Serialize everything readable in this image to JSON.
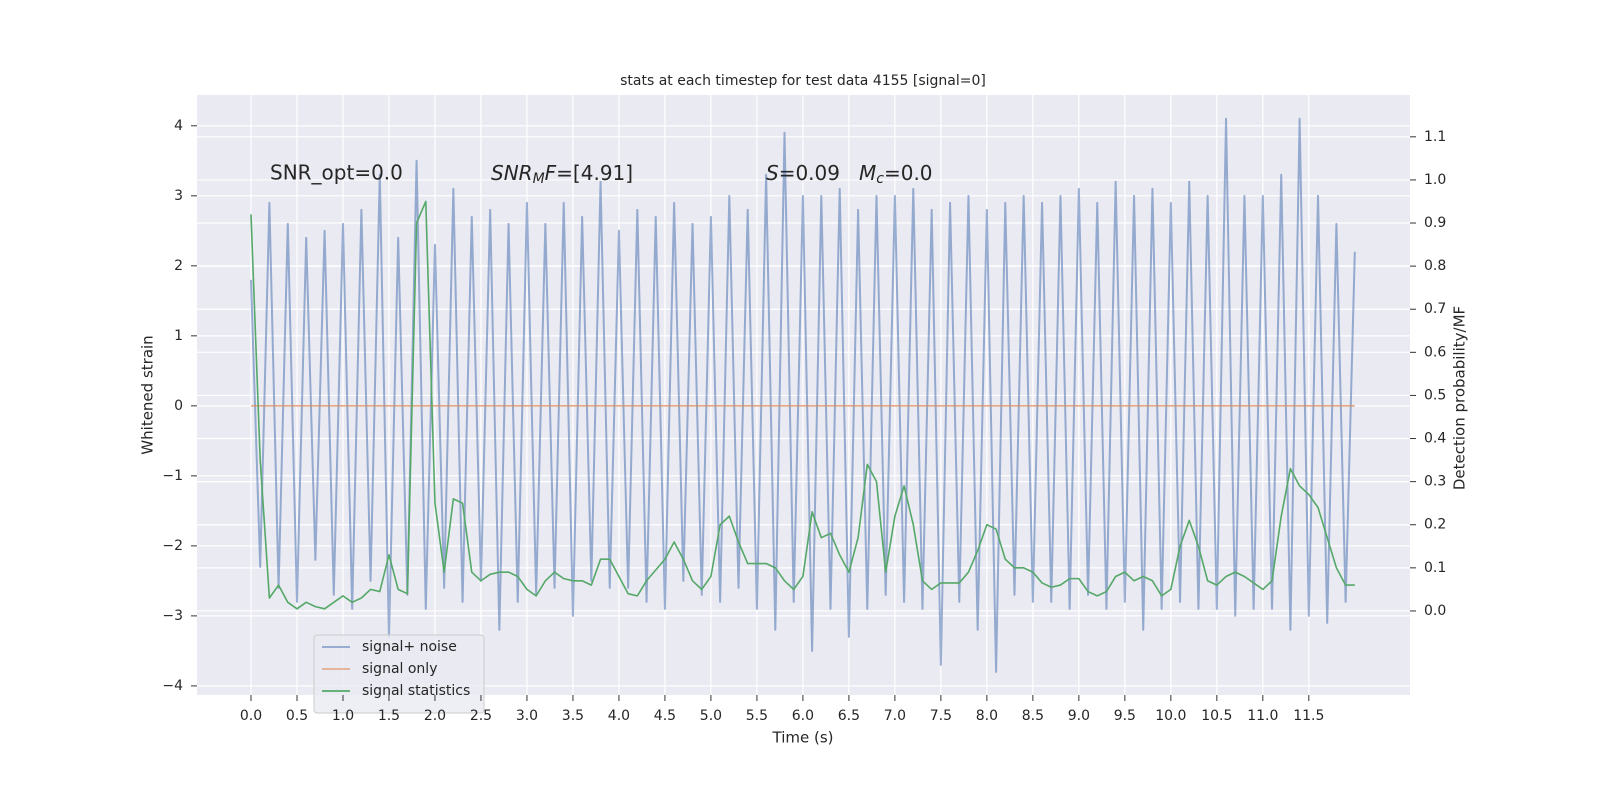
{
  "chart_data": {
    "type": "line",
    "title": "stats at each timestep for test data 4155 [signal=0]",
    "xlabel": "Time (s)",
    "ylabel": "Whitened strain",
    "y2label": "Detection probability/MF",
    "annotations": [
      {
        "text": "SNR_opt=0.0"
      },
      {
        "symbol": "SNR",
        "subscript": "M",
        "symbol2": "F",
        "text": "=[4.91]"
      },
      {
        "symbol": "S",
        "text": "=0.09"
      },
      {
        "symbol": "M",
        "subscript": "c",
        "text": "=0.0"
      }
    ],
    "x": [
      0.0,
      0.1,
      0.2,
      0.3,
      0.4,
      0.5,
      0.6,
      0.7,
      0.8,
      0.9,
      1.0,
      1.1,
      1.2,
      1.3,
      1.4,
      1.5,
      1.6,
      1.7,
      1.8,
      1.9,
      2.0,
      2.1,
      2.2,
      2.3,
      2.4,
      2.5,
      2.6,
      2.7,
      2.8,
      2.9,
      3.0,
      3.1,
      3.2,
      3.3,
      3.4,
      3.5,
      3.6,
      3.7,
      3.8,
      3.9,
      4.0,
      4.1,
      4.2,
      4.3,
      4.4,
      4.5,
      4.6,
      4.7,
      4.8,
      4.9,
      5.0,
      5.1,
      5.2,
      5.3,
      5.4,
      5.5,
      5.6,
      5.7,
      5.8,
      5.9,
      6.0,
      6.1,
      6.2,
      6.3,
      6.4,
      6.5,
      6.6,
      6.7,
      6.8,
      6.9,
      7.0,
      7.1,
      7.2,
      7.3,
      7.4,
      7.5,
      7.6,
      7.7,
      7.8,
      7.9,
      8.0,
      8.1,
      8.2,
      8.3,
      8.4,
      8.5,
      8.6,
      8.7,
      8.8,
      8.9,
      9.0,
      9.1,
      9.2,
      9.3,
      9.4,
      9.5,
      9.6,
      9.7,
      9.8,
      9.9,
      10.0,
      10.1,
      10.2,
      10.3,
      10.4,
      10.5,
      10.6,
      10.7,
      10.8,
      10.9,
      11.0,
      11.1,
      11.2,
      11.3,
      11.4,
      11.5,
      11.6,
      11.7,
      11.8,
      11.9,
      12.0
    ],
    "series": [
      {
        "name": "signal+ noise",
        "color": "#4c72b0",
        "axis": "y",
        "values": [
          1.8,
          -2.3,
          2.9,
          -2.6,
          2.6,
          -2.8,
          2.4,
          -2.2,
          2.5,
          -2.7,
          2.6,
          -2.9,
          2.8,
          -2.5,
          3.3,
          -3.3,
          2.4,
          -2.7,
          3.5,
          -2.9,
          2.3,
          -2.6,
          3.1,
          -2.8,
          2.7,
          -2.5,
          2.8,
          -3.2,
          2.6,
          -2.8,
          2.9,
          -2.7,
          2.6,
          -2.6,
          2.9,
          -3.0,
          2.7,
          -2.5,
          3.2,
          -2.6,
          2.5,
          -2.6,
          2.8,
          -2.8,
          2.7,
          -2.9,
          2.9,
          -2.5,
          2.6,
          -2.7,
          2.7,
          -2.8,
          3.0,
          -2.6,
          2.8,
          -2.9,
          3.3,
          -3.2,
          3.9,
          -2.8,
          3.0,
          -3.5,
          3.0,
          -2.9,
          3.1,
          -3.3,
          2.8,
          -2.9,
          3.0,
          -2.7,
          3.0,
          -2.8,
          3.1,
          -2.9,
          2.8,
          -3.7,
          2.9,
          -2.8,
          3.0,
          -3.2,
          2.8,
          -3.8,
          2.9,
          -2.7,
          3.0,
          -2.8,
          2.9,
          -2.8,
          3.0,
          -2.9,
          3.1,
          -2.7,
          2.9,
          -2.9,
          3.2,
          -2.8,
          3.0,
          -3.2,
          3.1,
          -2.9,
          2.9,
          -2.8,
          3.2,
          -2.9,
          3.0,
          -2.9,
          4.1,
          -3.0,
          3.0,
          -2.9,
          3.0,
          -2.9,
          3.3,
          -3.2,
          4.1,
          -3.0,
          3.0,
          -3.1,
          2.6,
          -2.8,
          2.2
        ]
      },
      {
        "name": "signal only",
        "color": "#dd8452",
        "axis": "y",
        "values": [
          0,
          0,
          0,
          0,
          0,
          0,
          0,
          0,
          0,
          0,
          0,
          0,
          0,
          0,
          0,
          0,
          0,
          0,
          0,
          0,
          0,
          0,
          0,
          0,
          0,
          0,
          0,
          0,
          0,
          0,
          0,
          0,
          0,
          0,
          0,
          0,
          0,
          0,
          0,
          0,
          0,
          0,
          0,
          0,
          0,
          0,
          0,
          0,
          0,
          0,
          0,
          0,
          0,
          0,
          0,
          0,
          0,
          0,
          0,
          0,
          0,
          0,
          0,
          0,
          0,
          0,
          0,
          0,
          0,
          0,
          0,
          0,
          0,
          0,
          0,
          0,
          0,
          0,
          0,
          0,
          0,
          0,
          0,
          0,
          0,
          0,
          0,
          0,
          0,
          0,
          0,
          0,
          0,
          0,
          0,
          0,
          0,
          0,
          0,
          0,
          0,
          0,
          0,
          0,
          0,
          0,
          0,
          0,
          0,
          0,
          0,
          0,
          0,
          0,
          0,
          0,
          0,
          0,
          0,
          0,
          0
        ]
      },
      {
        "name": "signal statistics",
        "color": "#55a868",
        "axis": "y2",
        "values": [
          0.92,
          0.35,
          0.03,
          0.06,
          0.02,
          0.005,
          0.02,
          0.01,
          0.005,
          0.02,
          0.035,
          0.02,
          0.03,
          0.05,
          0.045,
          0.13,
          0.05,
          0.04,
          0.9,
          0.95,
          0.25,
          0.09,
          0.26,
          0.25,
          0.09,
          0.07,
          0.085,
          0.09,
          0.09,
          0.08,
          0.05,
          0.035,
          0.07,
          0.09,
          0.075,
          0.07,
          0.07,
          0.06,
          0.12,
          0.12,
          0.08,
          0.04,
          0.035,
          0.07,
          0.095,
          0.12,
          0.16,
          0.12,
          0.07,
          0.05,
          0.08,
          0.2,
          0.22,
          0.16,
          0.11,
          0.11,
          0.11,
          0.1,
          0.07,
          0.05,
          0.08,
          0.23,
          0.17,
          0.18,
          0.13,
          0.09,
          0.17,
          0.34,
          0.3,
          0.09,
          0.22,
          0.29,
          0.2,
          0.07,
          0.05,
          0.065,
          0.065,
          0.065,
          0.09,
          0.14,
          0.2,
          0.19,
          0.12,
          0.1,
          0.1,
          0.09,
          0.065,
          0.055,
          0.06,
          0.075,
          0.075,
          0.045,
          0.035,
          0.045,
          0.08,
          0.09,
          0.07,
          0.08,
          0.07,
          0.035,
          0.05,
          0.15,
          0.21,
          0.15,
          0.07,
          0.06,
          0.08,
          0.09,
          0.08,
          0.065,
          0.05,
          0.07,
          0.22,
          0.33,
          0.29,
          0.27,
          0.24,
          0.17,
          0.1,
          0.06,
          0.06
        ]
      }
    ],
    "xlim": [
      -0.587,
      12.6
    ],
    "ylim": [
      -4.13,
      4.44
    ],
    "y2lim": [
      -0.195,
      1.197
    ],
    "xticks": [
      {
        "value": 0,
        "label": "0.0"
      },
      {
        "value": 0.5,
        "label": "0.5"
      },
      {
        "value": 1,
        "label": "1.0"
      },
      {
        "value": 1.5,
        "label": "1.5"
      },
      {
        "value": 2,
        "label": "2.0"
      },
      {
        "value": 2.5,
        "label": "2.5"
      },
      {
        "value": 3,
        "label": "3.0"
      },
      {
        "value": 3.5,
        "label": "3.5"
      },
      {
        "value": 4,
        "label": "4.0"
      },
      {
        "value": 4.5,
        "label": "4.5"
      },
      {
        "value": 5,
        "label": "5.0"
      },
      {
        "value": 5.5,
        "label": "5.5"
      },
      {
        "value": 6,
        "label": "6.0"
      },
      {
        "value": 6.5,
        "label": "6.5"
      },
      {
        "value": 7,
        "label": "7.0"
      },
      {
        "value": 7.5,
        "label": "7.5"
      },
      {
        "value": 8,
        "label": "8.0"
      },
      {
        "value": 8.5,
        "label": "8.5"
      },
      {
        "value": 9,
        "label": "9.0"
      },
      {
        "value": 9.5,
        "label": "9.5"
      },
      {
        "value": 10,
        "label": "10.0"
      },
      {
        "value": 10.5,
        "label": "10.5"
      },
      {
        "value": 11,
        "label": "11.0"
      },
      {
        "value": 11.5,
        "label": "11.5"
      }
    ],
    "yticks": [
      {
        "value": -4,
        "label": "−4"
      },
      {
        "value": -3,
        "label": "−3"
      },
      {
        "value": -2,
        "label": "−2"
      },
      {
        "value": -1,
        "label": "−1"
      },
      0,
      1,
      2,
      3,
      4
    ],
    "y2ticks": [
      {
        "value": 0,
        "label": "0.0"
      },
      {
        "value": 0.1,
        "label": "0.1"
      },
      {
        "value": 0.2,
        "label": "0.2"
      },
      {
        "value": 0.3,
        "label": "0.3"
      },
      {
        "value": 0.4,
        "label": "0.4"
      },
      {
        "value": 0.5,
        "label": "0.5"
      },
      {
        "value": 0.6,
        "label": "0.6"
      },
      {
        "value": 0.7,
        "label": "0.7"
      },
      {
        "value": 0.8,
        "label": "0.8"
      },
      {
        "value": 0.9,
        "label": "0.9"
      },
      {
        "value": 1.0,
        "label": "1.0"
      },
      {
        "value": 1.1,
        "label": "1.1"
      }
    ],
    "grid": true,
    "legend": "lower left"
  }
}
